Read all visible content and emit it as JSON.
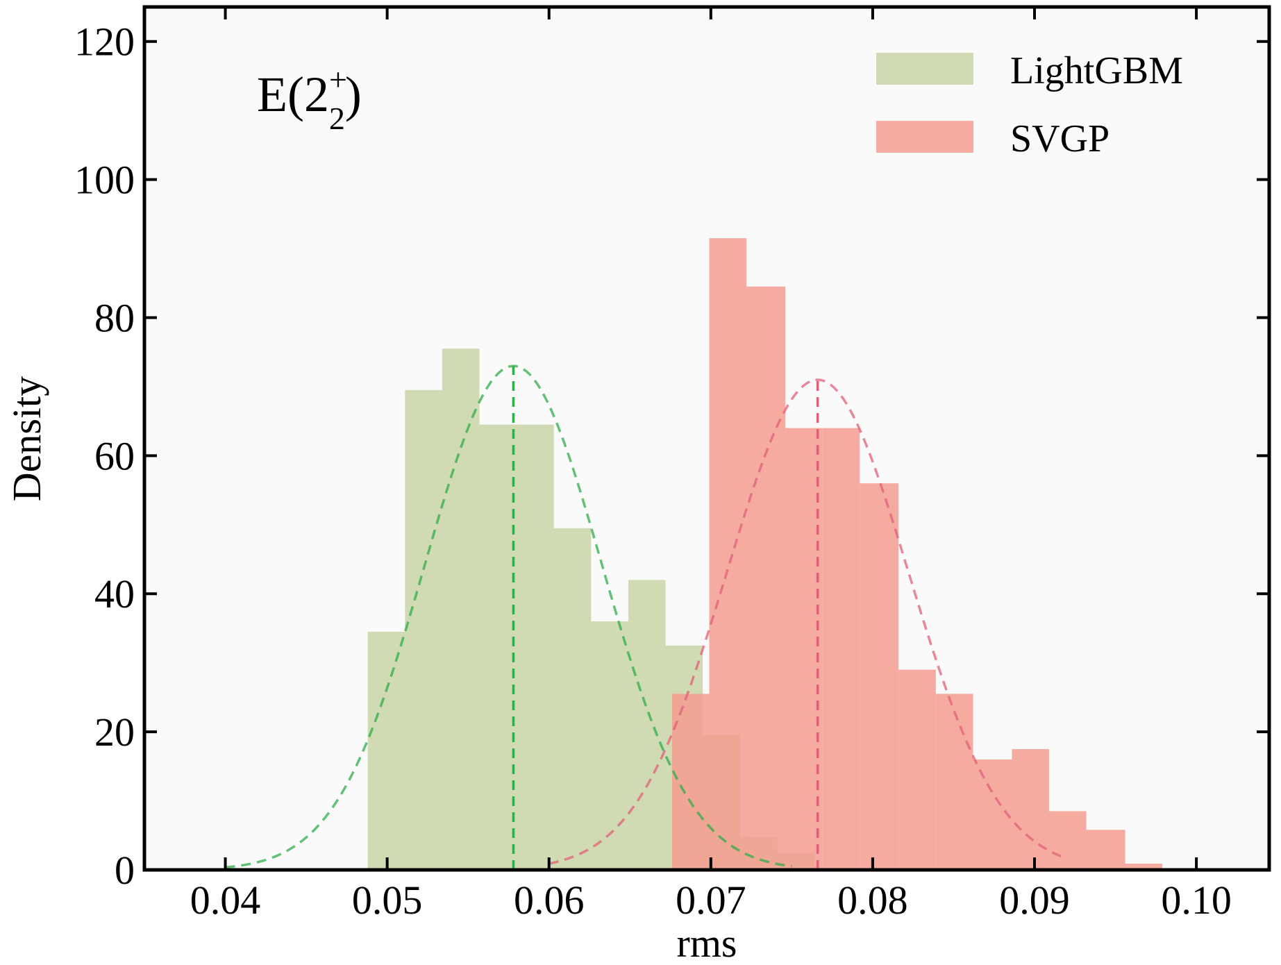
{
  "chart_data": {
    "type": "bar",
    "subtype": "histogram",
    "xlabel": "rms",
    "ylabel": "Density",
    "xlim": [
      0.035,
      0.1045
    ],
    "ylim": [
      0,
      125
    ],
    "xticks": [
      0.04,
      0.05,
      0.06,
      0.07,
      0.08,
      0.09,
      0.1
    ],
    "xtick_labels": [
      "0.04",
      "0.05",
      "0.06",
      "0.07",
      "0.08",
      "0.09",
      "0.10"
    ],
    "yticks": [
      0,
      20,
      40,
      60,
      80,
      100,
      120
    ],
    "ytick_labels": [
      "0",
      "20",
      "40",
      "60",
      "80",
      "100",
      "120"
    ],
    "annotation": {
      "main": "E(2",
      "sup": "+",
      "sub": "2",
      "close": ")"
    },
    "legend": {
      "position": "top-right"
    },
    "series": [
      {
        "name": "LightGBM",
        "color": "#c8d4a6",
        "bin_edges": [
          0.0488,
          0.0511,
          0.0534,
          0.0557,
          0.058,
          0.0603,
          0.0626,
          0.0649,
          0.0672,
          0.0695,
          0.0718,
          0.0741,
          0.0764
        ],
        "values": [
          34.5,
          69.5,
          75.5,
          64.5,
          64.5,
          49.5,
          36.0,
          42.0,
          32.5,
          19.5,
          4.8,
          2.4
        ],
        "fit_mean": 0.0578,
        "fit_peak": 73,
        "fit_color": "#2fae4a",
        "fit_range": [
          0.04,
          0.075
        ]
      },
      {
        "name": "SVGP",
        "color": "#f49c8f",
        "bin_edges": [
          0.0676,
          0.0699,
          0.0722,
          0.0746,
          0.0769,
          0.0792,
          0.0816,
          0.0839,
          0.0862,
          0.0886,
          0.0909,
          0.0932,
          0.0956,
          0.0979
        ],
        "values": [
          25.5,
          91.5,
          84.5,
          64.0,
          64.0,
          56.0,
          29.0,
          25.5,
          16.0,
          17.5,
          8.5,
          5.8,
          0.9
        ],
        "fit_mean": 0.0766,
        "fit_peak": 71,
        "fit_color": "#e0607a",
        "fit_range": [
          0.06,
          0.092
        ]
      }
    ]
  }
}
